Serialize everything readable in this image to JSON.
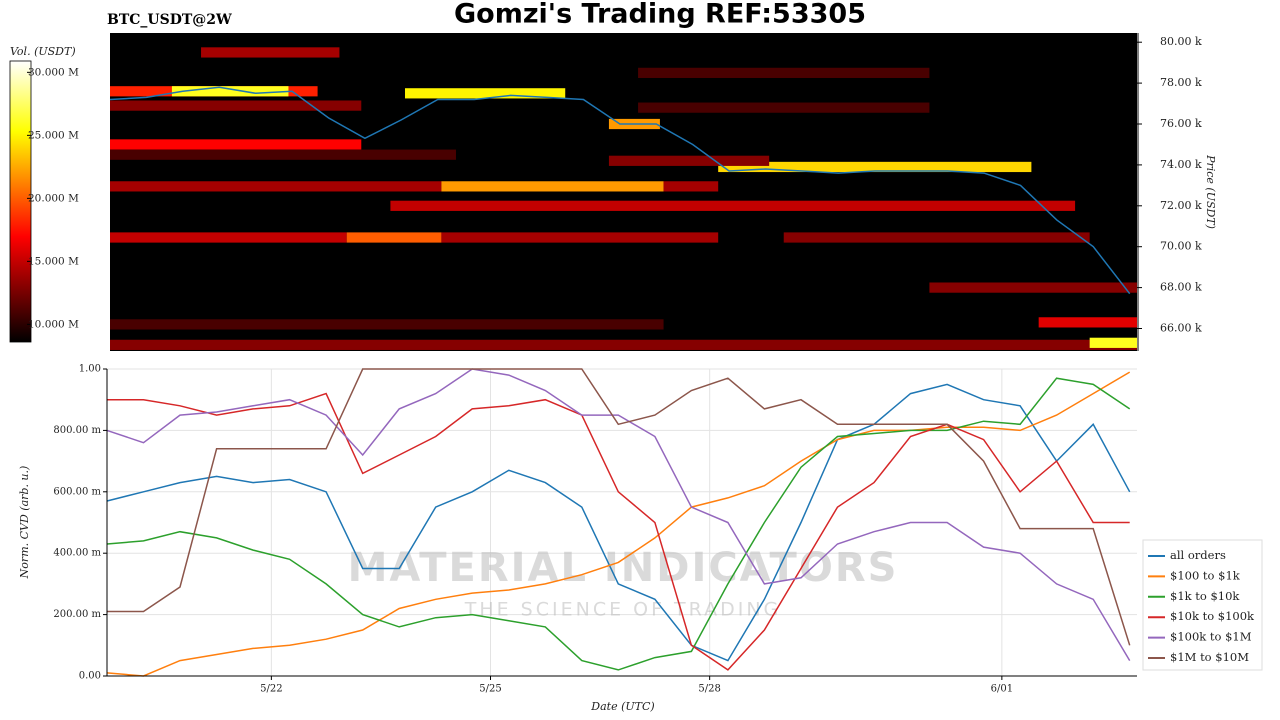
{
  "chart_data": [
    {
      "type": "heatmap",
      "title": "Gomzi's Trading REF:53305",
      "subtitle": "BTC_USDT@2W",
      "ylabel": "Price (USDT)",
      "colorbar_label": "Vol. (USDT)",
      "xlim": [
        -2.25,
        11.85
      ],
      "ylim": [
        64900,
        80450
      ],
      "yticks": [
        {
          "value": 66000,
          "label": "66.00 k"
        },
        {
          "value": 68000,
          "label": "68.00 k"
        },
        {
          "value": 70000,
          "label": "70.00 k"
        },
        {
          "value": 72000,
          "label": "72.00 k"
        },
        {
          "value": 74000,
          "label": "74.00 k"
        },
        {
          "value": 76000,
          "label": "76.00 k"
        },
        {
          "value": 78000,
          "label": "78.00 k"
        },
        {
          "value": 80000,
          "label": "80.00 k"
        }
      ],
      "clim": [
        8600000,
        30900000
      ],
      "cticks": [
        {
          "value": 10000000,
          "label": "10.000 M"
        },
        {
          "value": 15000000,
          "label": "15.000 M"
        },
        {
          "value": 20000000,
          "label": "20.000 M"
        },
        {
          "value": 25000000,
          "label": "25.000 M"
        },
        {
          "value": 30000000,
          "label": "30.000 M"
        }
      ],
      "colormap": "hot",
      "cells": [
        {
          "price": 79500,
          "start": -1.0,
          "end": 0.9,
          "volume": 14000000
        },
        {
          "price": 77600,
          "start": -2.25,
          "end": 0.6,
          "volume": 18000000
        },
        {
          "price": 76900,
          "start": -2.25,
          "end": 1.2,
          "volume": 13000000
        },
        {
          "price": 75000,
          "start": -2.25,
          "end": 1.2,
          "volume": 17000000
        },
        {
          "price": 74500,
          "start": -2.25,
          "end": 2.5,
          "volume": 11000000
        },
        {
          "price": 72950,
          "start": -2.25,
          "end": 2.3,
          "volume": 14000000
        },
        {
          "price": 72950,
          "start": 2.3,
          "end": 5.35,
          "volume": 22000000
        },
        {
          "price": 72950,
          "start": 5.35,
          "end": 6.1,
          "volume": 14000000
        },
        {
          "price": 72000,
          "start": 1.6,
          "end": 11.0,
          "volume": 15000000
        },
        {
          "price": 70450,
          "start": -2.25,
          "end": 1.0,
          "volume": 15000000
        },
        {
          "price": 70450,
          "start": 1.0,
          "end": 2.3,
          "volume": 20000000
        },
        {
          "price": 70450,
          "start": 2.3,
          "end": 6.1,
          "volume": 14000000
        },
        {
          "price": 70450,
          "start": 7.0,
          "end": 11.2,
          "volume": 13000000
        },
        {
          "price": 66200,
          "start": -2.25,
          "end": 5.35,
          "volume": 11000000
        },
        {
          "price": 65200,
          "start": -2.25,
          "end": 11.85,
          "volume": 13000000
        },
        {
          "price": 73900,
          "start": 6.1,
          "end": 10.4,
          "volume": 24000000
        },
        {
          "price": 77600,
          "start": -1.4,
          "end": 0.2,
          "volume": 26000000
        },
        {
          "price": 77500,
          "start": 1.8,
          "end": 4.0,
          "volume": 25000000
        },
        {
          "price": 76000,
          "start": 4.6,
          "end": 5.3,
          "volume": 22000000
        },
        {
          "price": 68000,
          "start": 9.0,
          "end": 11.85,
          "volume": 13000000
        },
        {
          "price": 66300,
          "start": 10.5,
          "end": 11.85,
          "volume": 16000000
        },
        {
          "price": 65300,
          "start": 11.2,
          "end": 11.85,
          "volume": 26000000
        },
        {
          "price": 74200,
          "start": 4.6,
          "end": 6.8,
          "volume": 13000000
        },
        {
          "price": 76800,
          "start": 5.0,
          "end": 9.0,
          "volume": 11000000
        },
        {
          "price": 78500,
          "start": 5.0,
          "end": 9.0,
          "volume": 11000000
        }
      ],
      "line_color": "#1f77b4",
      "x": [
        -2.25,
        -1.75,
        -1.25,
        -0.75,
        -0.25,
        0.25,
        0.75,
        1.25,
        1.75,
        2.25,
        2.75,
        3.25,
        3.75,
        4.25,
        4.75,
        5.25,
        5.75,
        6.25,
        6.75,
        7.25,
        7.75,
        8.25,
        8.75,
        9.25,
        9.75,
        10.25,
        10.75,
        11.25,
        11.75
      ],
      "values": [
        77200,
        77300,
        77600,
        77800,
        77500,
        77600,
        76300,
        75300,
        76200,
        77200,
        77200,
        77400,
        77300,
        77200,
        76000,
        76000,
        75000,
        73700,
        73800,
        73700,
        73600,
        73700,
        73700,
        73700,
        73600,
        73000,
        71300,
        70000,
        67700
      ]
    },
    {
      "type": "line",
      "xlabel": "Date (UTC)",
      "ylabel": "Norm. CVD (arb. u.)",
      "xlim": [
        -2.25,
        11.85
      ],
      "ylim": [
        0,
        1
      ],
      "xticks": [
        {
          "value": 0,
          "label": "5/22"
        },
        {
          "value": 3,
          "label": "5/25"
        },
        {
          "value": 6,
          "label": "5/28"
        },
        {
          "value": 10,
          "label": "6/01"
        }
      ],
      "yticks": [
        {
          "value": 0,
          "label": "0.00"
        },
        {
          "value": 0.2,
          "label": "200.00 m"
        },
        {
          "value": 0.4,
          "label": "400.00 m"
        },
        {
          "value": 0.6,
          "label": "600.00 m"
        },
        {
          "value": 0.8,
          "label": "800.00 m"
        },
        {
          "value": 1,
          "label": "1.00"
        }
      ],
      "grid": true,
      "legend": "right",
      "watermark": {
        "title": "MATERIAL INDICATORS",
        "subtitle": "THE SCIENCE OF TRADING"
      },
      "x": [
        -2.25,
        -1.75,
        -1.25,
        -0.75,
        -0.25,
        0.25,
        0.75,
        1.25,
        1.75,
        2.25,
        2.75,
        3.25,
        3.75,
        4.25,
        4.75,
        5.25,
        5.75,
        6.25,
        6.75,
        7.25,
        7.75,
        8.25,
        8.75,
        9.25,
        9.75,
        10.25,
        10.75,
        11.25,
        11.75
      ],
      "series": [
        {
          "name": "all orders",
          "color": "#1f77b4",
          "values": [
            0.57,
            0.6,
            0.63,
            0.65,
            0.63,
            0.64,
            0.6,
            0.35,
            0.35,
            0.55,
            0.6,
            0.67,
            0.63,
            0.55,
            0.3,
            0.25,
            0.1,
            0.05,
            0.25,
            0.5,
            0.77,
            0.82,
            0.92,
            0.95,
            0.9,
            0.88,
            0.7,
            0.82,
            0.6
          ]
        },
        {
          "name": "$100 to $1k",
          "color": "#ff7f0e",
          "values": [
            0.01,
            0.0,
            0.05,
            0.07,
            0.09,
            0.1,
            0.12,
            0.15,
            0.22,
            0.25,
            0.27,
            0.28,
            0.3,
            0.33,
            0.37,
            0.45,
            0.55,
            0.58,
            0.62,
            0.7,
            0.77,
            0.8,
            0.8,
            0.81,
            0.81,
            0.8,
            0.85,
            0.92,
            0.99
          ]
        },
        {
          "name": "$1k to $10k",
          "color": "#2ca02c",
          "values": [
            0.43,
            0.44,
            0.47,
            0.45,
            0.41,
            0.38,
            0.3,
            0.2,
            0.16,
            0.19,
            0.2,
            0.18,
            0.16,
            0.05,
            0.02,
            0.06,
            0.08,
            0.3,
            0.5,
            0.68,
            0.78,
            0.79,
            0.8,
            0.8,
            0.83,
            0.82,
            0.97,
            0.95,
            0.87
          ]
        },
        {
          "name": "$10k to $100k",
          "color": "#d62728",
          "values": [
            0.9,
            0.9,
            0.88,
            0.85,
            0.87,
            0.88,
            0.92,
            0.66,
            0.72,
            0.78,
            0.87,
            0.88,
            0.9,
            0.85,
            0.6,
            0.5,
            0.1,
            0.02,
            0.15,
            0.35,
            0.55,
            0.63,
            0.78,
            0.82,
            0.77,
            0.6,
            0.7,
            0.5,
            0.5
          ]
        },
        {
          "name": "$100k to $1M",
          "color": "#9467bd",
          "values": [
            0.8,
            0.76,
            0.85,
            0.86,
            0.88,
            0.9,
            0.85,
            0.72,
            0.87,
            0.92,
            1.0,
            0.98,
            0.93,
            0.85,
            0.85,
            0.78,
            0.55,
            0.5,
            0.3,
            0.32,
            0.43,
            0.47,
            0.5,
            0.5,
            0.42,
            0.4,
            0.3,
            0.25,
            0.05
          ]
        },
        {
          "name": "$1M to $10M",
          "color": "#8c564b",
          "values": [
            0.21,
            0.21,
            0.29,
            0.74,
            0.74,
            0.74,
            0.74,
            1.0,
            1.0,
            1.0,
            1.0,
            1.0,
            1.0,
            1.0,
            0.82,
            0.85,
            0.93,
            0.97,
            0.87,
            0.9,
            0.82,
            0.82,
            0.82,
            0.82,
            0.7,
            0.48,
            0.48,
            0.48,
            0.1
          ]
        }
      ]
    }
  ]
}
